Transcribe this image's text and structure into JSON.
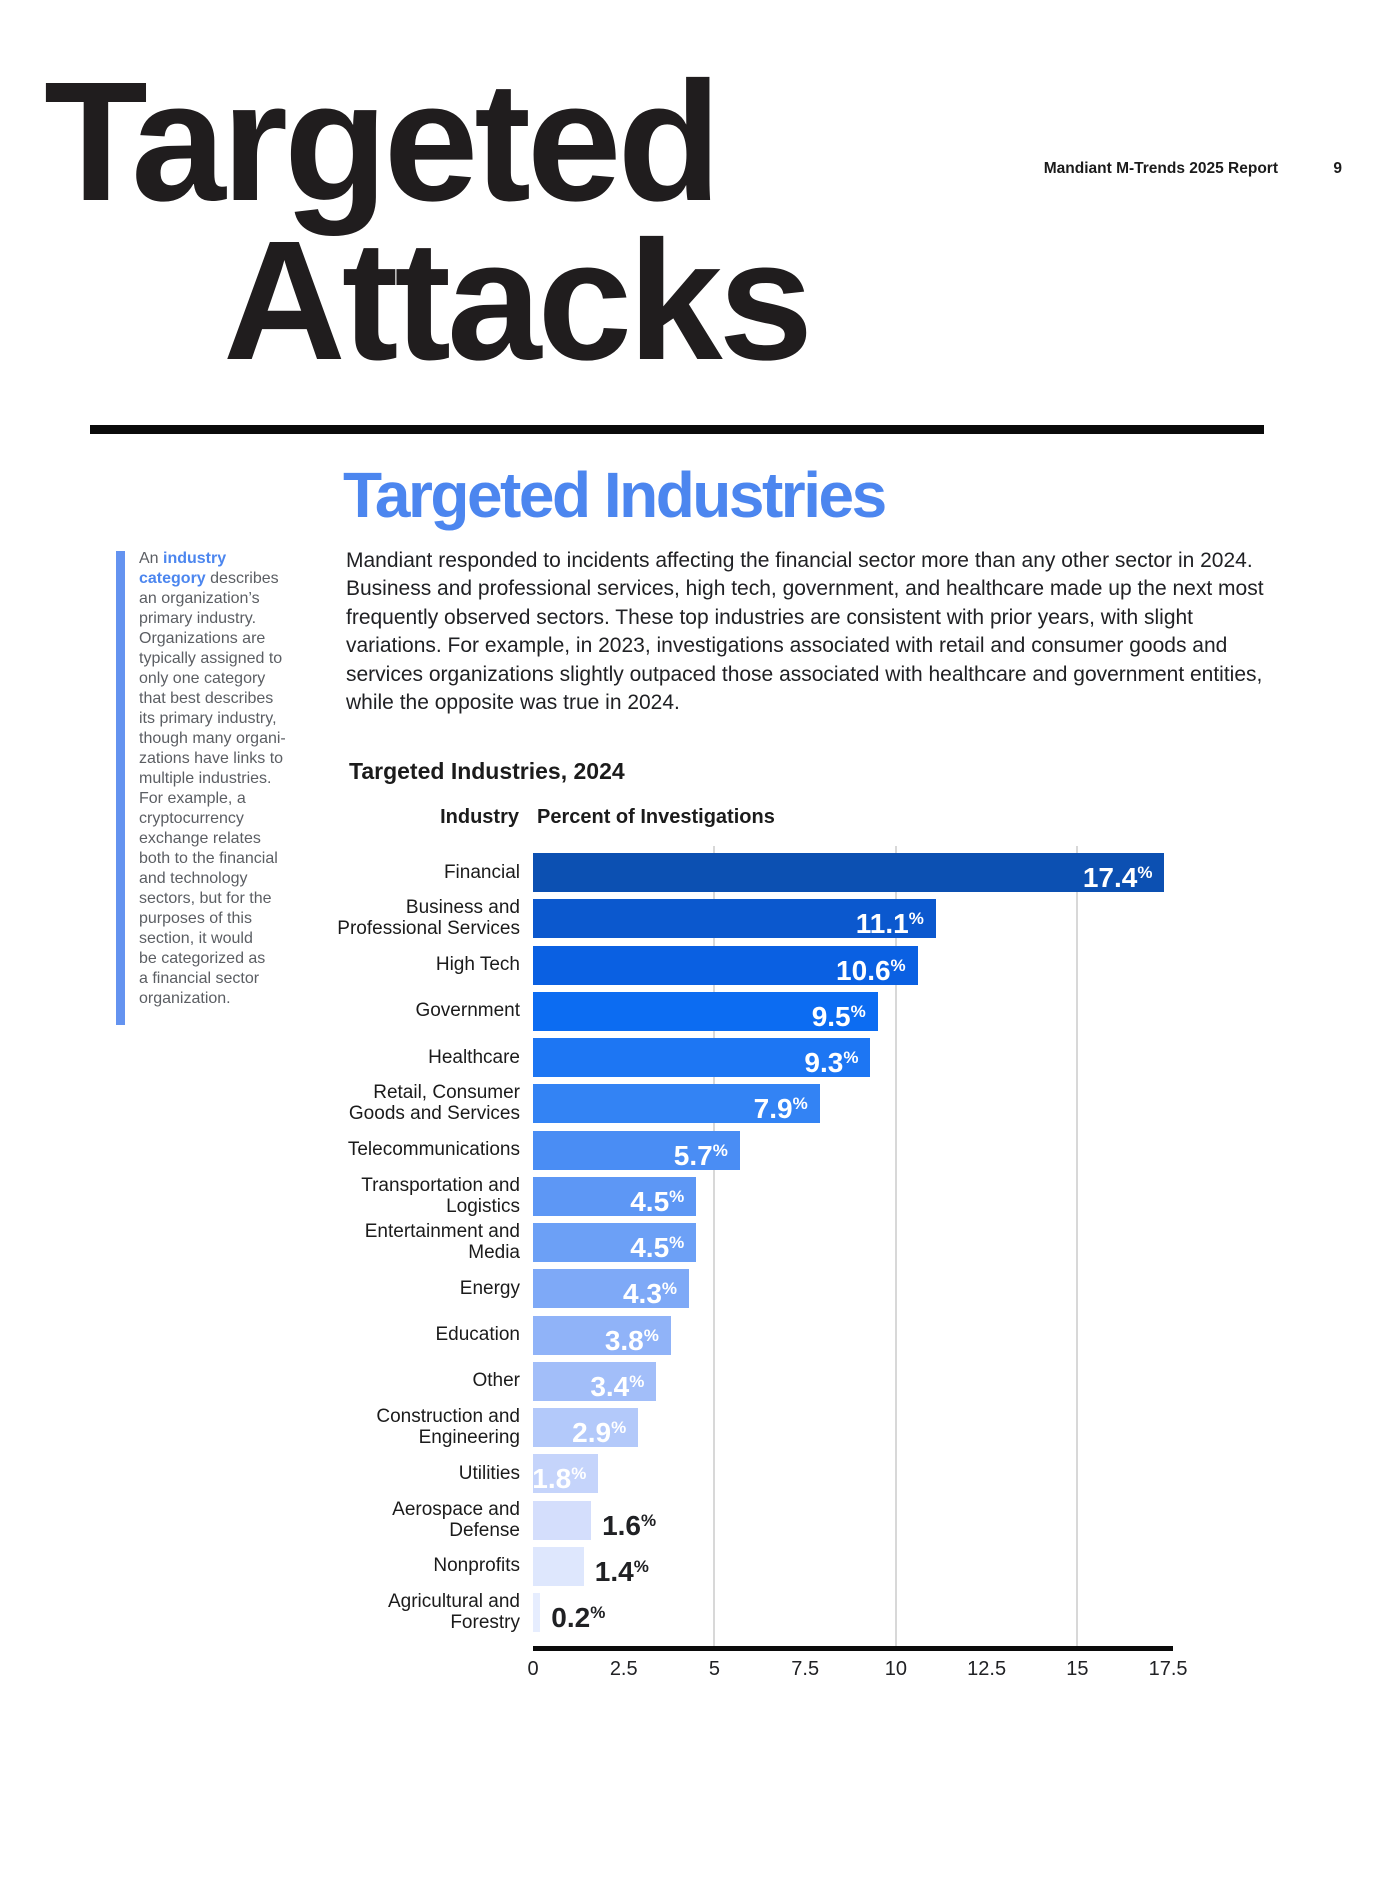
{
  "header": {
    "report_title": "Mandiant M-Trends 2025 Report",
    "page_number": "9"
  },
  "title": {
    "line1": "Targeted",
    "line2": "Attacks"
  },
  "section": {
    "heading": "Targeted Industries",
    "body": "Mandiant responded to incidents affecting the financial sector more than any other sector in 2024. Business and professional services, high tech, government, and healthcare made up the next most frequently observed sectors. These top industries are consistent with prior years, with slight variations. For example, in 2023, investigations associated with retail and consumer goods and services organizations slightly outpaced those associated with healthcare and government entities, while the opposite was true in 2024."
  },
  "sidebar": {
    "prefix": "An ",
    "link": "industry\ncategory",
    "rest": " describes\nan organization’s\nprimary industry.\nOrganizations are\ntypically assigned to\nonly one category\nthat best describes\nits primary industry,\nthough many organi-\nzations have links to\nmultiple industries.\nFor example, a\ncryptocurrency\nexchange relates\nboth to the financial\nand technology\nsectors, but for the\npurposes of this\nsection, it would\nbe categorized as\na financial sector\norganization."
  },
  "chart": {
    "title": "Targeted Industries, 2024",
    "col_industry": "Industry",
    "col_percent": "Percent of Investigations"
  },
  "chart_data": {
    "type": "bar",
    "orientation": "horizontal",
    "title": "Targeted Industries, 2024",
    "xlabel": "Percent of Investigations",
    "ylabel": "Industry",
    "xlim": [
      0,
      17.5
    ],
    "xtick_labels": [
      "0",
      "2.5",
      "5",
      "7.5",
      "10",
      "12.5",
      "15",
      "17.5"
    ],
    "xtick_values": [
      0,
      2.5,
      5,
      7.5,
      10,
      12.5,
      15,
      17.5
    ],
    "gridlines_at": [
      5,
      10,
      15
    ],
    "unit": "%",
    "categories": [
      "Financial",
      "Business and Professional Services",
      "High Tech",
      "Government",
      "Healthcare",
      "Retail, Consumer Goods and Services",
      "Telecommunications",
      "Transportation and Logistics",
      "Entertainment and Media",
      "Energy",
      "Education",
      "Other",
      "Construction and Engineering",
      "Utilities",
      "Aerospace and Defense",
      "Nonprofits",
      "Agricultural and Forestry"
    ],
    "label_lines": [
      [
        "Financial"
      ],
      [
        "Business and",
        "Professional Services"
      ],
      [
        "High Tech"
      ],
      [
        "Government"
      ],
      [
        "Healthcare"
      ],
      [
        "Retail, Consumer",
        "Goods and Services"
      ],
      [
        "Telecommunications"
      ],
      [
        "Transportation and",
        "Logistics"
      ],
      [
        "Entertainment and",
        "Media"
      ],
      [
        "Energy"
      ],
      [
        "Education"
      ],
      [
        "Other"
      ],
      [
        "Construction and",
        "Engineering"
      ],
      [
        "Utilities"
      ],
      [
        "Aerospace and",
        "Defense"
      ],
      [
        "Nonprofits"
      ],
      [
        "Agricultural and",
        "Forestry"
      ]
    ],
    "values": [
      17.4,
      11.1,
      10.6,
      9.5,
      9.3,
      7.9,
      5.7,
      4.5,
      4.5,
      4.3,
      3.8,
      3.4,
      2.9,
      1.8,
      1.6,
      1.4,
      0.2
    ],
    "value_labels": [
      "17.4",
      "11.1",
      "10.6",
      "9.5",
      "9.3",
      "7.9",
      "5.7",
      "4.5",
      "4.5",
      "4.3",
      "3.8",
      "3.4",
      "2.9",
      "1.8",
      "1.6",
      "1.4",
      "0.2"
    ],
    "bar_colors": [
      "#0c50b2",
      "#0b58ce",
      "#0a60e2",
      "#0c6cf2",
      "#1d76f3",
      "#3383f4",
      "#4a8df4",
      "#5d97f5",
      "#6ca0f6",
      "#7ea9f7",
      "#90b3f8",
      "#a2bef9",
      "#b3c9fa",
      "#c5d4fb",
      "#d4defc",
      "#dee7fd",
      "#e6edfe"
    ],
    "value_label_inside": [
      true,
      true,
      true,
      true,
      true,
      true,
      true,
      true,
      true,
      true,
      true,
      true,
      true,
      true,
      false,
      false,
      false
    ],
    "colors": {
      "value_text_inside": "#ffffff",
      "value_text_outside": "#202124",
      "axis_line": "#0b0b0b",
      "gridline": "#d8d8d8",
      "accent_blue": "#4c86ef"
    }
  }
}
